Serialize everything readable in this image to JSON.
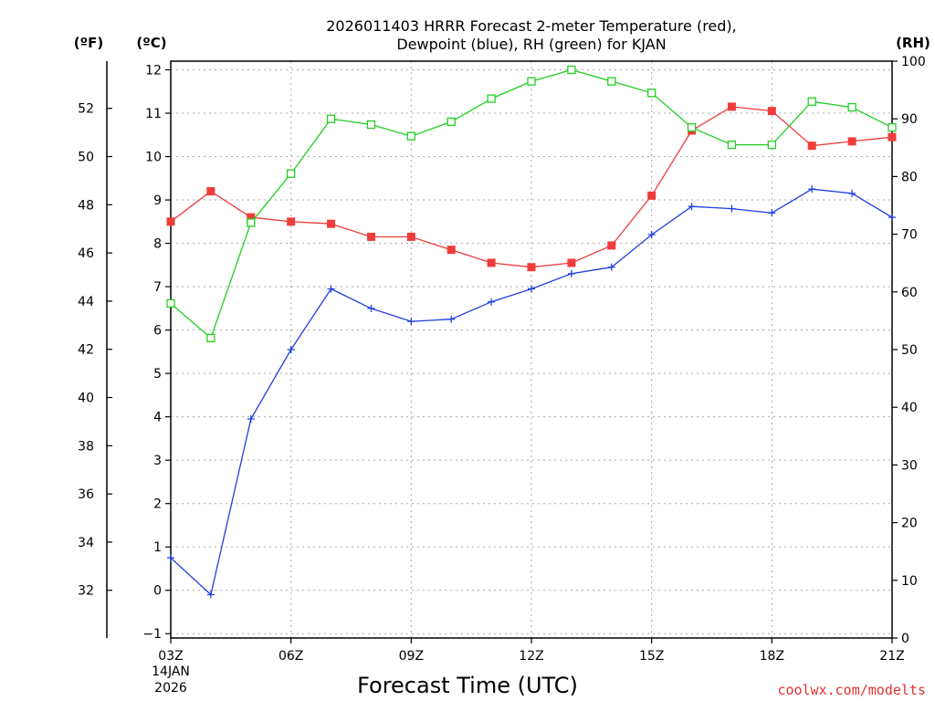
{
  "chart_data": {
    "type": "line",
    "title_lines": [
      "2026011403 HRRR Forecast 2-meter Temperature (red),",
      "Dewpoint (blue), RH (green) for KJAN"
    ],
    "xlabel": "Forecast Time (UTC)",
    "x_hours": [
      3,
      4,
      5,
      6,
      7,
      8,
      9,
      10,
      11,
      12,
      13,
      14,
      15,
      16,
      17,
      18,
      19,
      20,
      21
    ],
    "x_ticks": [
      {
        "value": 3,
        "label": "03Z"
      },
      {
        "value": 6,
        "label": "06Z"
      },
      {
        "value": 9,
        "label": "09Z"
      },
      {
        "value": 12,
        "label": "12Z"
      },
      {
        "value": 15,
        "label": "15Z"
      },
      {
        "value": 18,
        "label": "18Z"
      },
      {
        "value": 21,
        "label": "21Z"
      }
    ],
    "x_date_lines": [
      "14JAN",
      "2026"
    ],
    "y_celsius": {
      "unit_label": "(ºC)",
      "range": [
        -1.1,
        12.2
      ],
      "ticks": [
        "-1",
        "0",
        "1",
        "2",
        "3",
        "4",
        "5",
        "6",
        "7",
        "8",
        "9",
        "10",
        "11",
        "12"
      ]
    },
    "y_fahrenheit": {
      "unit_label": "(ºF)",
      "ticks": [
        "32",
        "34",
        "36",
        "38",
        "40",
        "42",
        "44",
        "46",
        "48",
        "50",
        "52"
      ]
    },
    "y_rh": {
      "unit_label": "(RH)",
      "range": [
        0,
        100
      ],
      "ticks": [
        "0",
        "10",
        "20",
        "30",
        "40",
        "50",
        "60",
        "70",
        "80",
        "90",
        "100"
      ]
    },
    "grid": true,
    "series": [
      {
        "name": "2-meter Temperature",
        "axis": "celsius",
        "color": "#f03c3c",
        "marker": "filled-square",
        "values": [
          8.5,
          9.2,
          8.6,
          8.5,
          8.45,
          8.15,
          8.15,
          7.85,
          7.55,
          7.45,
          7.55,
          7.95,
          9.1,
          10.6,
          11.15,
          11.05,
          10.25,
          10.35,
          10.45
        ]
      },
      {
        "name": "Dewpoint",
        "axis": "celsius",
        "color": "#2040e0",
        "marker": "plus",
        "values": [
          0.75,
          -0.1,
          3.95,
          5.55,
          6.95,
          6.5,
          6.2,
          6.25,
          6.65,
          6.95,
          7.3,
          7.45,
          8.2,
          8.85,
          8.8,
          8.7,
          9.25,
          9.15,
          8.6
        ]
      },
      {
        "name": "RH",
        "axis": "rh",
        "color": "#20d020",
        "marker": "open-square",
        "values": [
          58,
          52,
          72,
          80.5,
          90,
          89,
          87,
          89.5,
          93.5,
          96.5,
          98.5,
          96.5,
          94.5,
          88.5,
          85.5,
          85.5,
          93,
          92,
          88.5
        ]
      }
    ],
    "credit": "coolwx.com/modelts"
  }
}
